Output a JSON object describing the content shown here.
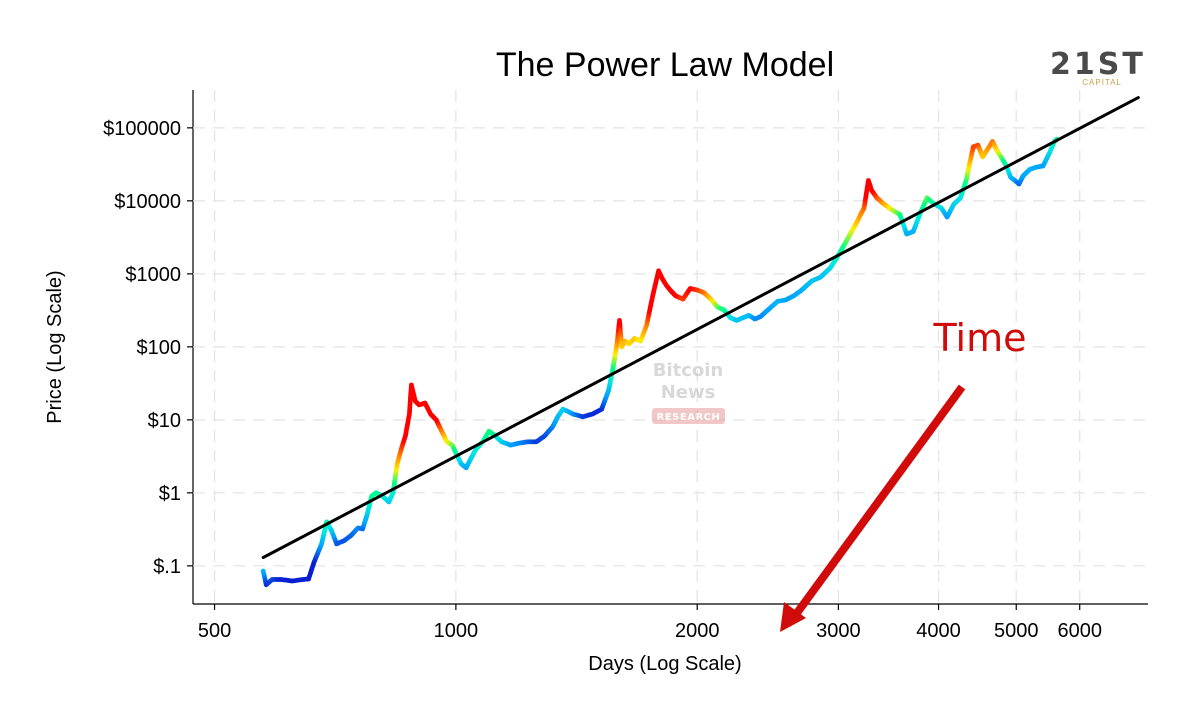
{
  "chart_data": {
    "type": "scatter",
    "title": "The Power Law Model",
    "xlabel": "Days (Log Scale)",
    "ylabel": "Price (Log Scale)",
    "xscale": "log",
    "yscale": "log",
    "xlim": [
      470,
      7300
    ],
    "ylim": [
      0.03,
      330000
    ],
    "grid": true,
    "x_ticks": [
      {
        "value": 500,
        "label": "500"
      },
      {
        "value": 1000,
        "label": "1000"
      },
      {
        "value": 2000,
        "label": "2000"
      },
      {
        "value": 3000,
        "label": "3000"
      },
      {
        "value": 4000,
        "label": "4000"
      },
      {
        "value": 5000,
        "label": "5000"
      },
      {
        "value": 6000,
        "label": "6000"
      }
    ],
    "y_ticks": [
      {
        "value": 0.1,
        "label": "$.1"
      },
      {
        "value": 1,
        "label": "$1"
      },
      {
        "value": 10,
        "label": "$10"
      },
      {
        "value": 100,
        "label": "$100"
      },
      {
        "value": 1000,
        "label": "$1000"
      },
      {
        "value": 10000,
        "label": "$10000"
      },
      {
        "value": 100000,
        "label": "$100000"
      }
    ],
    "trend_line": {
      "name": "Power law fit",
      "color": "#000000",
      "points": [
        [
          575,
          0.13
        ],
        [
          7100,
          260000
        ]
      ]
    },
    "color_scale": [
      "#0a1ed2",
      "#00a0ff",
      "#00e6e6",
      "#00ff80",
      "#fff000",
      "#ff8000",
      "#ff0000"
    ],
    "series": [
      {
        "name": "Bitcoin price",
        "points": [
          [
            575,
            0.085
          ],
          [
            580,
            0.055
          ],
          [
            590,
            0.065
          ],
          [
            605,
            0.065
          ],
          [
            625,
            0.062
          ],
          [
            645,
            0.065
          ],
          [
            655,
            0.066
          ],
          [
            665,
            0.11
          ],
          [
            680,
            0.2
          ],
          [
            690,
            0.4
          ],
          [
            700,
            0.3
          ],
          [
            710,
            0.2
          ],
          [
            725,
            0.22
          ],
          [
            740,
            0.26
          ],
          [
            755,
            0.33
          ],
          [
            765,
            0.32
          ],
          [
            775,
            0.5
          ],
          [
            785,
            0.9
          ],
          [
            795,
            1.0
          ],
          [
            810,
            0.9
          ],
          [
            825,
            0.75
          ],
          [
            835,
            1.0
          ],
          [
            845,
            2.5
          ],
          [
            855,
            4.0
          ],
          [
            865,
            6.0
          ],
          [
            875,
            12.0
          ],
          [
            880,
            30.0
          ],
          [
            890,
            18.0
          ],
          [
            900,
            16.0
          ],
          [
            915,
            17.0
          ],
          [
            930,
            12.0
          ],
          [
            945,
            10.0
          ],
          [
            960,
            7.0
          ],
          [
            975,
            5.0
          ],
          [
            990,
            4.5
          ],
          [
            1000,
            3.5
          ],
          [
            1015,
            2.5
          ],
          [
            1030,
            2.2
          ],
          [
            1045,
            3.0
          ],
          [
            1060,
            4.0
          ],
          [
            1080,
            5.0
          ],
          [
            1100,
            7.0
          ],
          [
            1120,
            6.0
          ],
          [
            1140,
            5.0
          ],
          [
            1170,
            4.5
          ],
          [
            1200,
            4.8
          ],
          [
            1230,
            5.0
          ],
          [
            1260,
            5.0
          ],
          [
            1290,
            6.0
          ],
          [
            1320,
            8.0
          ],
          [
            1340,
            11.0
          ],
          [
            1360,
            14.0
          ],
          [
            1380,
            13.0
          ],
          [
            1400,
            12.0
          ],
          [
            1440,
            11.0
          ],
          [
            1480,
            12.0
          ],
          [
            1520,
            14.0
          ],
          [
            1550,
            25.0
          ],
          [
            1570,
            50.0
          ],
          [
            1590,
            120.0
          ],
          [
            1600,
            230.0
          ],
          [
            1610,
            100.0
          ],
          [
            1625,
            120.0
          ],
          [
            1645,
            110.0
          ],
          [
            1670,
            130.0
          ],
          [
            1700,
            120.0
          ],
          [
            1730,
            200.0
          ],
          [
            1760,
            500.0
          ],
          [
            1790,
            1100.0
          ],
          [
            1810,
            850.0
          ],
          [
            1830,
            700.0
          ],
          [
            1850,
            600.0
          ],
          [
            1880,
            500.0
          ],
          [
            1920,
            450.0
          ],
          [
            1960,
            630.0
          ],
          [
            2000,
            600.0
          ],
          [
            2040,
            550.0
          ],
          [
            2080,
            450.0
          ],
          [
            2120,
            350.0
          ],
          [
            2160,
            320.0
          ],
          [
            2200,
            250.0
          ],
          [
            2240,
            230.0
          ],
          [
            2280,
            250.0
          ],
          [
            2320,
            270.0
          ],
          [
            2360,
            240.0
          ],
          [
            2400,
            260.0
          ],
          [
            2450,
            320.0
          ],
          [
            2520,
            420.0
          ],
          [
            2580,
            440.0
          ],
          [
            2640,
            500.0
          ],
          [
            2700,
            600.0
          ],
          [
            2780,
            800.0
          ],
          [
            2850,
            900.0
          ],
          [
            2930,
            1200.0
          ],
          [
            3000,
            1800.0
          ],
          [
            3080,
            3000.0
          ],
          [
            3160,
            5000.0
          ],
          [
            3230,
            8000.0
          ],
          [
            3270,
            19000.0
          ],
          [
            3300,
            14000.0
          ],
          [
            3350,
            11000.0
          ],
          [
            3420,
            9000.0
          ],
          [
            3500,
            7500.0
          ],
          [
            3580,
            6500.0
          ],
          [
            3650,
            3500.0
          ],
          [
            3720,
            3800.0
          ],
          [
            3800,
            7000.0
          ],
          [
            3870,
            11000.0
          ],
          [
            3950,
            9000.0
          ],
          [
            4030,
            8000.0
          ],
          [
            4100,
            6000.0
          ],
          [
            4180,
            9000.0
          ],
          [
            4260,
            11000.0
          ],
          [
            4330,
            19000.0
          ],
          [
            4380,
            35000.0
          ],
          [
            4420,
            55000.0
          ],
          [
            4480,
            58000.0
          ],
          [
            4540,
            40000.0
          ],
          [
            4600,
            50000.0
          ],
          [
            4670,
            65000.0
          ],
          [
            4740,
            47000.0
          ],
          [
            4800,
            38000.0
          ],
          [
            4860,
            30000.0
          ],
          [
            4920,
            21000.0
          ],
          [
            4980,
            19000.0
          ],
          [
            5040,
            17000.0
          ],
          [
            5100,
            22000.0
          ],
          [
            5200,
            27000.0
          ],
          [
            5300,
            29000.0
          ],
          [
            5400,
            30000.0
          ],
          [
            5500,
            45000.0
          ],
          [
            5580,
            65000.0
          ],
          [
            5620,
            70000.0
          ]
        ]
      }
    ],
    "annotations": [
      {
        "text": "Time",
        "color": "#d10a0a",
        "type": "arrow-label"
      }
    ]
  },
  "branding": {
    "logo_main": "21ST",
    "logo_sub": "CAPITAL",
    "watermark_line1": "Bitcoin",
    "watermark_line2": "News",
    "watermark_badge": "RESEARCH"
  }
}
